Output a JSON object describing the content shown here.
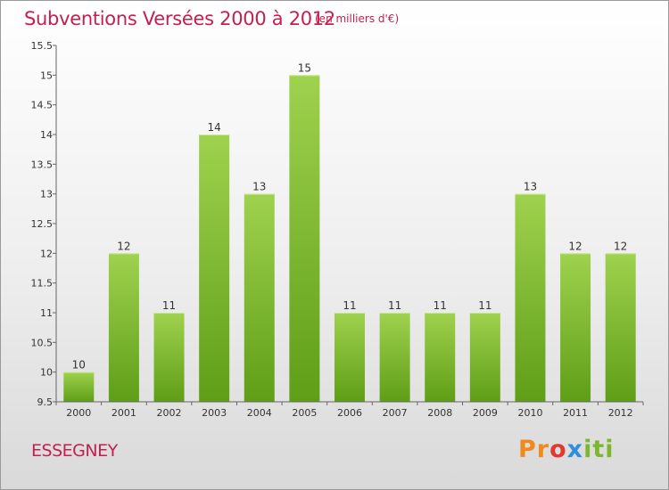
{
  "title": "Subventions Versées 2000 à 2012",
  "subtitle": "(en milliers d'€)",
  "commune": "ESSEGNEY",
  "logo": {
    "letters": [
      "Pr",
      "o",
      "x",
      "iti"
    ]
  },
  "colors": {
    "accent": "#c4204f",
    "bar_top": "#9fd24e",
    "bar_bottom": "#5f9e17"
  },
  "chart_data": {
    "type": "bar",
    "categories": [
      "2000",
      "2001",
      "2002",
      "2003",
      "2004",
      "2005",
      "2006",
      "2007",
      "2008",
      "2009",
      "2010",
      "2011",
      "2012"
    ],
    "values": [
      10,
      12,
      11,
      14,
      13,
      15,
      11,
      11,
      11,
      11,
      13,
      12,
      12
    ],
    "data_labels": [
      "10",
      "12",
      "11",
      "14",
      "13",
      "15",
      "11",
      "11",
      "11",
      "11",
      "13",
      "12",
      "12"
    ],
    "ylim": [
      9.5,
      15.5
    ],
    "yticks": [
      9.5,
      10,
      10.5,
      11,
      11.5,
      12,
      12.5,
      13,
      13.5,
      14,
      14.5,
      15,
      15.5
    ],
    "ytick_labels": [
      "9.5",
      "10",
      "10.5",
      "11",
      "11.5",
      "12",
      "12.5",
      "13",
      "13.5",
      "14",
      "14.5",
      "15",
      "15.5"
    ],
    "grid": false
  }
}
